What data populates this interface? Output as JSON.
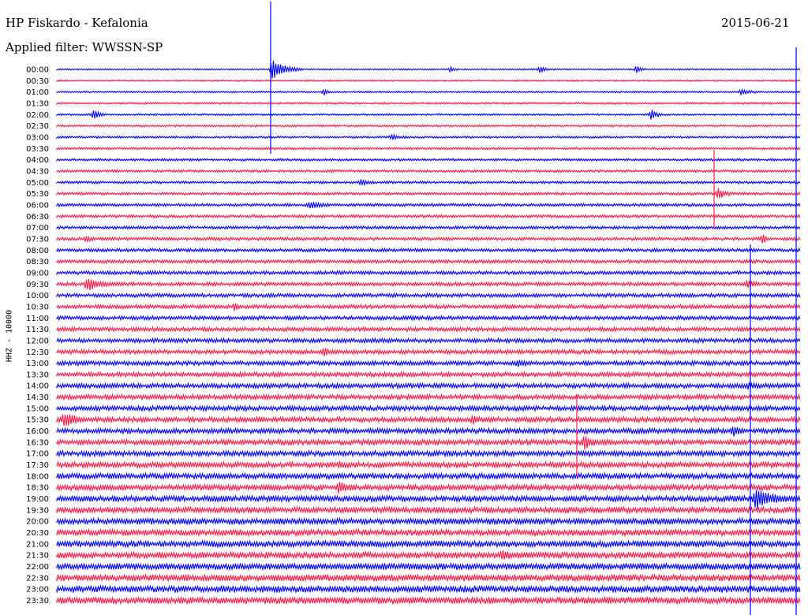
{
  "header": {
    "title": "HP Fiskardo - Kefalonia",
    "date": "2015-06-21",
    "filter": "Applied filter: WWSSN-SP"
  },
  "channel_label": "HHZ - 10000",
  "colors": {
    "trace_a": "#0000ff",
    "trace_b": "#ff1744"
  },
  "chart_data": {
    "type": "line",
    "title": "HP Fiskardo - Kefalonia",
    "subtitle": "Applied filter: WWSSN-SP",
    "ylabel": "HHZ - 10000",
    "series_type": "helicorder",
    "row_labels": [
      "00:00",
      "00:30",
      "01:00",
      "01:30",
      "02:00",
      "02:30",
      "03:00",
      "03:30",
      "04:00",
      "04:30",
      "05:00",
      "05:30",
      "06:00",
      "06:30",
      "07:00",
      "07:30",
      "08:00",
      "08:30",
      "09:00",
      "09:30",
      "10:00",
      "10:30",
      "11:00",
      "11:30",
      "12:00",
      "12:30",
      "13:00",
      "13:30",
      "14:00",
      "14:30",
      "15:00",
      "15:30",
      "16:00",
      "16:30",
      "17:00",
      "17:30",
      "18:00",
      "18:30",
      "19:00",
      "19:30",
      "20:00",
      "20:30",
      "21:00",
      "21:30",
      "22:00",
      "22:30",
      "23:00",
      "23:30"
    ],
    "trace_colors": [
      "#0000ff",
      "#ff1744"
    ],
    "events": [
      {
        "row": 0,
        "pos": 0.29,
        "amp": 14,
        "len": 0.04
      },
      {
        "row": 0,
        "pos": 0.53,
        "amp": 4,
        "len": 0.01
      },
      {
        "row": 0,
        "pos": 0.65,
        "amp": 5,
        "len": 0.015
      },
      {
        "row": 0,
        "pos": 0.78,
        "amp": 5,
        "len": 0.012
      },
      {
        "row": 2,
        "pos": 0.36,
        "amp": 4,
        "len": 0.01
      },
      {
        "row": 2,
        "pos": 0.92,
        "amp": 3,
        "len": 0.03
      },
      {
        "row": 4,
        "pos": 0.05,
        "amp": 7,
        "len": 0.015
      },
      {
        "row": 4,
        "pos": 0.8,
        "amp": 7,
        "len": 0.015
      },
      {
        "row": 6,
        "pos": 0.45,
        "amp": 3,
        "len": 0.02
      },
      {
        "row": 10,
        "pos": 0.41,
        "amp": 4,
        "len": 0.015
      },
      {
        "row": 11,
        "pos": 0.89,
        "amp": 7,
        "len": 0.02
      },
      {
        "row": 12,
        "pos": 0.34,
        "amp": 4,
        "len": 0.03
      },
      {
        "row": 15,
        "pos": 0.04,
        "amp": 4,
        "len": 0.01
      },
      {
        "row": 15,
        "pos": 0.95,
        "amp": 7,
        "len": 0.008
      },
      {
        "row": 19,
        "pos": 0.04,
        "amp": 8,
        "len": 0.04
      },
      {
        "row": 19,
        "pos": 0.93,
        "amp": 5,
        "len": 0.015
      },
      {
        "row": 21,
        "pos": 0.24,
        "amp": 5,
        "len": 0.01
      },
      {
        "row": 25,
        "pos": 0.36,
        "amp": 6,
        "len": 0.01
      },
      {
        "row": 26,
        "pos": 0.62,
        "amp": 3,
        "len": 0.03
      },
      {
        "row": 28,
        "pos": 0.93,
        "amp": 3,
        "len": 0.02
      },
      {
        "row": 31,
        "pos": 0.01,
        "amp": 9,
        "len": 0.03
      },
      {
        "row": 31,
        "pos": 0.56,
        "amp": 5,
        "len": 0.01
      },
      {
        "row": 32,
        "pos": 0.91,
        "amp": 5,
        "len": 0.015
      },
      {
        "row": 33,
        "pos": 0.71,
        "amp": 9,
        "len": 0.02
      },
      {
        "row": 35,
        "pos": 0.38,
        "amp": 4,
        "len": 0.015
      },
      {
        "row": 37,
        "pos": 0.38,
        "amp": 6,
        "len": 0.02
      },
      {
        "row": 38,
        "pos": 0.94,
        "amp": 12,
        "len": 0.05
      },
      {
        "row": 43,
        "pos": 0.6,
        "amp": 6,
        "len": 0.015
      }
    ],
    "xlim": [
      "00:00",
      "30:00"
    ],
    "ylim": [
      "00:00",
      "23:30"
    ],
    "grid": false
  }
}
